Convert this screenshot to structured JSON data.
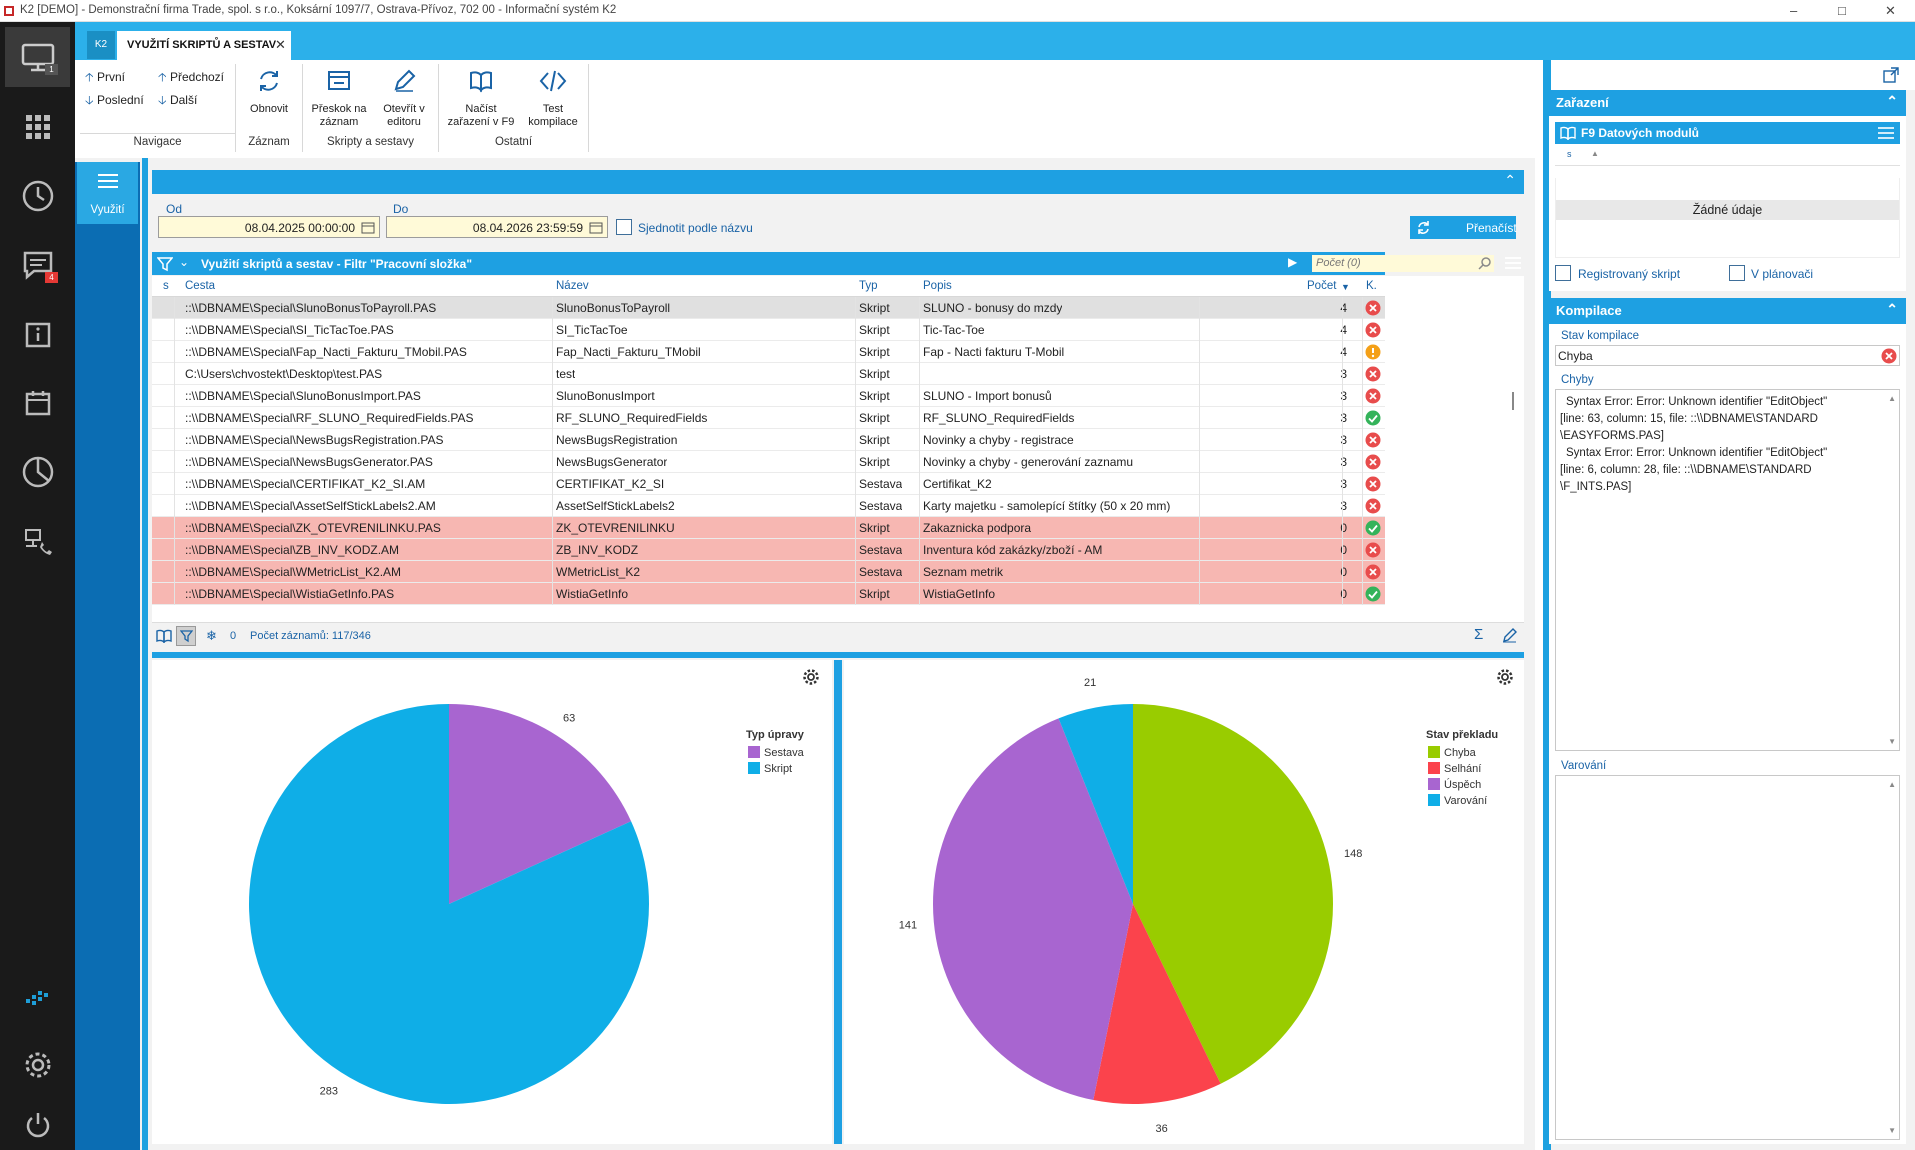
{
  "window": {
    "title": "K2 [DEMO] - Demonstrační firma Trade, spol. s r.o., Koksární 1097/7, Ostrava-Přívoz, 702 00 - Informační systém K2"
  },
  "sidebar": {
    "badges": {
      "monitor": "1",
      "messages": "4"
    }
  },
  "tabs": {
    "k2_label": "K2",
    "active": "VYUŽITÍ SKRIPTŮ A SESTAV"
  },
  "ribbon": {
    "navigace": {
      "first": "První",
      "prev": "Předchozí",
      "last": "Poslední",
      "next": "Další",
      "group": "Navigace"
    },
    "zaznam": {
      "refresh": "Obnovit",
      "group": "Záznam"
    },
    "skripty": {
      "skip_l1": "Přeskok na",
      "skip_l2": "záznam",
      "editor_l1": "Otevřít v",
      "editor_l2": "editoru",
      "group": "Skripty a sestavy"
    },
    "ostatni": {
      "load_l1": "Načíst",
      "load_l2": "zařazení v F9",
      "test_l1": "Test",
      "test_l2": "kompilace",
      "group": "Ostatní"
    }
  },
  "vertical_tab": "Využití",
  "filter": {
    "od_label": "Od",
    "od_value": "08.04.2025 00:00:00",
    "do_label": "Do",
    "do_value": "08.04.2026 23:59:59",
    "merge_label": "Sjednotit podle názvu",
    "recount_label": "Přenačíst"
  },
  "grid": {
    "title": "Využití skriptů a sestav - Filtr \"Pracovní složka\"",
    "search_placeholder": "Počet (0)",
    "columns": {
      "s": "s",
      "cesta": "Cesta",
      "nazev": "Název",
      "typ": "Typ",
      "popis": "Popis",
      "pocet": "Počet",
      "k": "K."
    },
    "rows": [
      {
        "cesta": "::\\\\DBNAME\\Special\\SlunoBonusToPayroll.PAS",
        "nazev": "SlunoBonusToPayroll",
        "typ": "Skript",
        "popis": "SLUNO - bonusy do mzdy",
        "pocet": "4",
        "status": "error",
        "style": "sel"
      },
      {
        "cesta": "::\\\\DBNAME\\Special\\SI_TicTacToe.PAS",
        "nazev": "SI_TicTacToe",
        "typ": "Skript",
        "popis": "Tic-Tac-Toe",
        "pocet": "4",
        "status": "error",
        "style": ""
      },
      {
        "cesta": "::\\\\DBNAME\\Special\\Fap_Nacti_Fakturu_TMobil.PAS",
        "nazev": "Fap_Nacti_Fakturu_TMobil",
        "typ": "Skript",
        "popis": "Fap - Nacti fakturu T-Mobil",
        "pocet": "4",
        "status": "warning",
        "style": ""
      },
      {
        "cesta": "C:\\Users\\chvostekt\\Desktop\\test.PAS",
        "nazev": "test",
        "typ": "Skript",
        "popis": "",
        "pocet": "3",
        "status": "error",
        "style": ""
      },
      {
        "cesta": "::\\\\DBNAME\\Special\\SlunoBonusImport.PAS",
        "nazev": "SlunoBonusImport",
        "typ": "Skript",
        "popis": "SLUNO - Import bonusů",
        "pocet": "3",
        "status": "error",
        "style": ""
      },
      {
        "cesta": "::\\\\DBNAME\\Special\\RF_SLUNO_RequiredFields.PAS",
        "nazev": "RF_SLUNO_RequiredFields",
        "typ": "Skript",
        "popis": "RF_SLUNO_RequiredFields",
        "pocet": "3",
        "status": "ok",
        "style": ""
      },
      {
        "cesta": "::\\\\DBNAME\\Special\\NewsBugsRegistration.PAS",
        "nazev": "NewsBugsRegistration",
        "typ": "Skript",
        "popis": "Novinky a chyby - registrace",
        "pocet": "3",
        "status": "error",
        "style": ""
      },
      {
        "cesta": "::\\\\DBNAME\\Special\\NewsBugsGenerator.PAS",
        "nazev": "NewsBugsGenerator",
        "typ": "Skript",
        "popis": "Novinky a chyby - generování zaznamu",
        "pocet": "3",
        "status": "error",
        "style": ""
      },
      {
        "cesta": "::\\\\DBNAME\\Special\\CERTIFIKAT_K2_SI.AM",
        "nazev": "CERTIFIKAT_K2_SI",
        "typ": "Sestava",
        "popis": "Certifikat_K2",
        "pocet": "3",
        "status": "error",
        "style": ""
      },
      {
        "cesta": "::\\\\DBNAME\\Special\\AssetSelfStickLabels2.AM",
        "nazev": "AssetSelfStickLabels2",
        "typ": "Sestava",
        "popis": "Karty majetku - samolepící štítky (50 x 20 mm)",
        "pocet": "3",
        "status": "error",
        "style": ""
      },
      {
        "cesta": "::\\\\DBNAME\\Special\\ZK_OTEVRENILINKU.PAS",
        "nazev": "ZK_OTEVRENILINKU",
        "typ": "Skript",
        "popis": "Zakaznicka podpora",
        "pocet": "0",
        "status": "ok",
        "style": "red"
      },
      {
        "cesta": "::\\\\DBNAME\\Special\\ZB_INV_KODZ.AM",
        "nazev": "ZB_INV_KODZ",
        "typ": "Sestava",
        "popis": "Inventura kód zakázky/zboží - AM",
        "pocet": "0",
        "status": "error",
        "style": "red"
      },
      {
        "cesta": "::\\\\DBNAME\\Special\\WMetricList_K2.AM",
        "nazev": "WMetricList_K2",
        "typ": "Sestava",
        "popis": "Seznam metrik",
        "pocet": "0",
        "status": "error",
        "style": "red"
      },
      {
        "cesta": "::\\\\DBNAME\\Special\\WistiaGetInfo.PAS",
        "nazev": "WistiaGetInfo",
        "typ": "Skript",
        "popis": "WistiaGetInfo",
        "pocet": "0",
        "status": "ok",
        "style": "red"
      }
    ],
    "footer_zero": "0",
    "footer_count": "Počet záznamů: 117/346"
  },
  "chart_data": [
    {
      "type": "pie",
      "title": "Typ úpravy",
      "categories": [
        "Sestava",
        "Skript"
      ],
      "values": [
        63,
        283
      ],
      "colors": [
        "#a865d0",
        "#0faee7"
      ]
    },
    {
      "type": "pie",
      "title": "Stav překladu",
      "categories": [
        "Chyba",
        "Selhání",
        "Úspěch",
        "Varování"
      ],
      "values": [
        148,
        36,
        141,
        21
      ],
      "colors": [
        "#99cc00",
        "#fb434c",
        "#a865d0",
        "#0faee7"
      ]
    }
  ],
  "right_panel": {
    "zarazeni": {
      "title": "Zařazení",
      "sub_title": "F9 Datových modulů",
      "col_s": "s",
      "empty": "Žádné údaje",
      "registered": "Registrovaný skript",
      "planner": "V plánovači"
    },
    "kompilace": {
      "title": "Kompilace",
      "stav_label": "Stav kompilace",
      "stav_value": "Chyba",
      "chyby_label": "Chyby",
      "chyby_lines": [
        "Syntax Error: Error: Unknown identifier \"EditObject\"",
        "[line: 63, column: 15, file: ::\\\\DBNAME\\STANDARD",
        "\\EASYFORMS.PAS]",
        "Syntax Error: Error: Unknown identifier \"EditObject\"",
        "[line: 6, column: 28, file: ::\\\\DBNAME\\STANDARD",
        "\\F_INTS.PAS]"
      ],
      "varovani_label": "Varování"
    }
  }
}
